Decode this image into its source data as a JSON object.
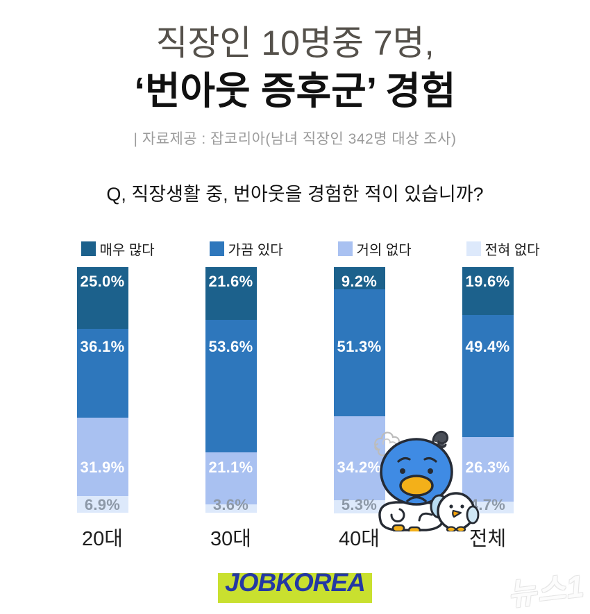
{
  "header": {
    "title_line1": "직장인 10명중 7명,",
    "title_line2": "‘번아웃 증후군’ 경험",
    "source": "| 자료제공 : 잡코리아(남녀 직장인 342명 대상 조사)"
  },
  "question": "Q, 직장생활 중, 번아웃을 경험한 적이 있습니까?",
  "chart_data": {
    "type": "bar",
    "stacked": true,
    "orientation": "vertical",
    "unit": "%",
    "ylim": [
      0,
      100
    ],
    "grid": false,
    "legend_position": "top",
    "categories": [
      "20대",
      "30대",
      "40대",
      "전체"
    ],
    "series": [
      {
        "name": "매우 많다",
        "color": "#1c618c",
        "values": [
          25.0,
          21.6,
          9.2,
          19.6
        ]
      },
      {
        "name": "가끔 있다",
        "color": "#2e77bc",
        "values": [
          36.1,
          53.6,
          51.3,
          49.4
        ]
      },
      {
        "name": "거의 없다",
        "color": "#a9c1f1",
        "values": [
          31.9,
          21.1,
          34.2,
          26.3
        ]
      },
      {
        "name": "전혀 없다",
        "color": "#dde9fb",
        "values": [
          6.9,
          3.6,
          5.3,
          4.7
        ]
      }
    ],
    "value_label_format": "{value}%",
    "value_label_colors": [
      "#ffffff",
      "#ffffff",
      "#ffffff",
      "#8d99a8"
    ]
  },
  "footer": {
    "logo_text": "JOBKOREA",
    "watermark_text": "뉴스1"
  },
  "colors": {
    "background": "#ffffff",
    "logo_blue": "#2438a3",
    "logo_highlight": "#c9e02f",
    "muted_label": "#8d99a8"
  }
}
